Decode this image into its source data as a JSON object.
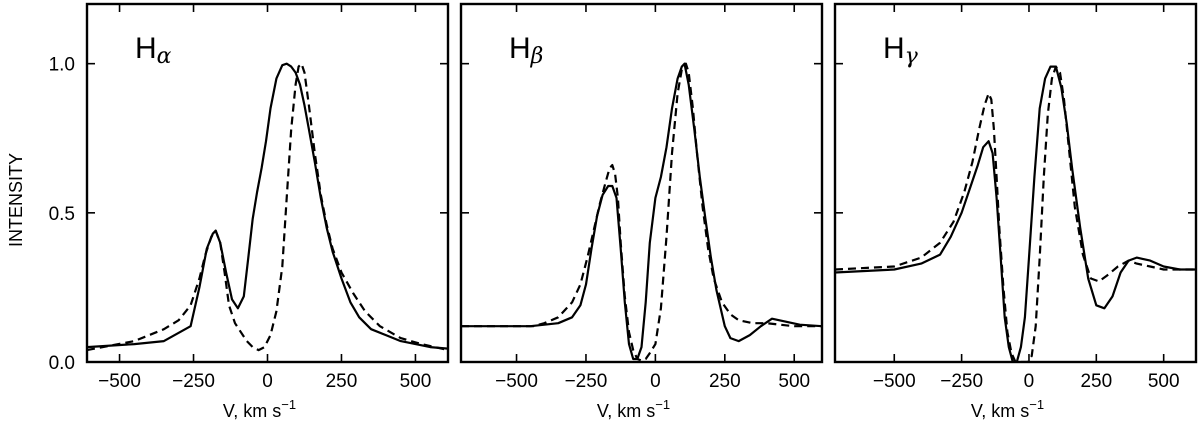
{
  "figure": {
    "ylabel": "INTENSITY",
    "xlabel_prefix": "V, km s",
    "xlabel_sup": "−1"
  },
  "chart_data": [
    {
      "type": "line",
      "title_main": "H",
      "title_sub": "α",
      "xlabel": "V, km s−1",
      "ylabel": "INTENSITY",
      "xlim": [
        -610,
        610
      ],
      "ylim": [
        0,
        1.2
      ],
      "xticks": [
        -500,
        -250,
        0,
        250,
        500
      ],
      "yticks": [
        0.0,
        0.5,
        1.0
      ],
      "ytick_labels": [
        "0.0",
        "0.5",
        "1.0"
      ],
      "show_ytick_labels": true,
      "series": [
        {
          "style": "solid",
          "x": [
            -610,
            -450,
            -350,
            -260,
            -230,
            -205,
            -185,
            -175,
            -160,
            -140,
            -120,
            -100,
            -80,
            -65,
            -50,
            -35,
            -20,
            -5,
            10,
            30,
            50,
            65,
            80,
            95,
            110,
            125,
            140,
            160,
            180,
            200,
            220,
            250,
            280,
            310,
            350,
            400,
            450,
            500,
            550,
            610
          ],
          "y": [
            0.05,
            0.06,
            0.07,
            0.12,
            0.25,
            0.38,
            0.43,
            0.44,
            0.4,
            0.3,
            0.21,
            0.18,
            0.22,
            0.35,
            0.48,
            0.57,
            0.65,
            0.74,
            0.85,
            0.95,
            0.995,
            1.0,
            0.99,
            0.97,
            0.93,
            0.86,
            0.78,
            0.67,
            0.55,
            0.45,
            0.37,
            0.28,
            0.2,
            0.15,
            0.11,
            0.09,
            0.07,
            0.06,
            0.05,
            0.045
          ]
        },
        {
          "style": "dashed",
          "x": [
            -610,
            -450,
            -350,
            -300,
            -260,
            -230,
            -210,
            -190,
            -175,
            -160,
            -145,
            -130,
            -110,
            -90,
            -70,
            -50,
            -30,
            -10,
            10,
            30,
            50,
            65,
            80,
            95,
            105,
            115,
            125,
            140,
            160,
            180,
            200,
            220,
            250,
            290,
            330,
            380,
            450,
            520,
            610
          ],
          "y": [
            0.04,
            0.07,
            0.11,
            0.14,
            0.19,
            0.28,
            0.36,
            0.42,
            0.44,
            0.4,
            0.3,
            0.19,
            0.13,
            0.1,
            0.07,
            0.05,
            0.04,
            0.05,
            0.09,
            0.17,
            0.32,
            0.55,
            0.78,
            0.93,
            0.99,
            1.0,
            0.97,
            0.86,
            0.7,
            0.56,
            0.46,
            0.38,
            0.3,
            0.23,
            0.17,
            0.12,
            0.08,
            0.06,
            0.04
          ]
        }
      ]
    },
    {
      "type": "line",
      "title_main": "H",
      "title_sub": "β",
      "xlabel": "V, km s−1",
      "ylabel": "",
      "xlim": [
        -700,
        600
      ],
      "ylim": [
        0,
        1.2
      ],
      "xticks": [
        -500,
        -250,
        0,
        250,
        500
      ],
      "yticks": [
        0.0,
        0.5,
        1.0
      ],
      "ytick_labels": [],
      "show_ytick_labels": false,
      "series": [
        {
          "style": "solid",
          "x": [
            -700,
            -450,
            -350,
            -300,
            -270,
            -250,
            -230,
            -210,
            -190,
            -170,
            -155,
            -140,
            -125,
            -110,
            -95,
            -80,
            -65,
            -50,
            -35,
            -20,
            0,
            20,
            40,
            60,
            80,
            95,
            105,
            120,
            140,
            160,
            180,
            200,
            220,
            250,
            270,
            300,
            340,
            380,
            420,
            470,
            520,
            600
          ],
          "y": [
            0.12,
            0.12,
            0.13,
            0.15,
            0.19,
            0.26,
            0.38,
            0.49,
            0.56,
            0.59,
            0.59,
            0.55,
            0.38,
            0.2,
            0.06,
            0.01,
            0.01,
            0.05,
            0.2,
            0.4,
            0.55,
            0.62,
            0.72,
            0.85,
            0.95,
            0.99,
            1.0,
            0.93,
            0.78,
            0.62,
            0.48,
            0.35,
            0.24,
            0.12,
            0.08,
            0.07,
            0.09,
            0.12,
            0.145,
            0.135,
            0.125,
            0.12
          ]
        },
        {
          "style": "dashed",
          "x": [
            -700,
            -500,
            -440,
            -400,
            -350,
            -300,
            -270,
            -245,
            -220,
            -200,
            -180,
            -165,
            -155,
            -145,
            -135,
            -125,
            -110,
            -95,
            -80,
            -65,
            -50,
            -35,
            -20,
            0,
            20,
            40,
            60,
            80,
            95,
            110,
            120,
            135,
            150,
            170,
            190,
            210,
            240,
            270,
            300,
            350,
            400,
            450,
            500,
            600
          ],
          "y": [
            0.12,
            0.12,
            0.12,
            0.13,
            0.15,
            0.2,
            0.26,
            0.35,
            0.45,
            0.53,
            0.6,
            0.65,
            0.66,
            0.63,
            0.55,
            0.4,
            0.22,
            0.1,
            0.04,
            0.01,
            0.005,
            0.01,
            0.03,
            0.06,
            0.18,
            0.42,
            0.7,
            0.9,
            0.98,
            1.0,
            0.97,
            0.85,
            0.7,
            0.52,
            0.38,
            0.28,
            0.2,
            0.16,
            0.14,
            0.13,
            0.13,
            0.125,
            0.12,
            0.12
          ]
        }
      ]
    },
    {
      "type": "line",
      "title_main": "H",
      "title_sub": "γ",
      "xlabel": "V, km s−1",
      "ylabel": "",
      "xlim": [
        -720,
        620
      ],
      "ylim": [
        0,
        1.2
      ],
      "xticks": [
        -500,
        -250,
        0,
        250,
        500
      ],
      "yticks": [
        0.0,
        0.5,
        1.0
      ],
      "ytick_labels": [],
      "show_ytick_labels": false,
      "series": [
        {
          "style": "solid",
          "x": [
            -720,
            -500,
            -400,
            -330,
            -290,
            -250,
            -220,
            -190,
            -170,
            -150,
            -135,
            -120,
            -105,
            -90,
            -75,
            -60,
            -45,
            -30,
            -15,
            0,
            20,
            40,
            60,
            80,
            100,
            120,
            140,
            160,
            190,
            220,
            250,
            280,
            310,
            340,
            370,
            400,
            450,
            500,
            560,
            620
          ],
          "y": [
            0.3,
            0.31,
            0.33,
            0.36,
            0.42,
            0.5,
            0.58,
            0.66,
            0.72,
            0.74,
            0.7,
            0.55,
            0.35,
            0.15,
            0.05,
            0.0,
            0.0,
            0.05,
            0.15,
            0.35,
            0.62,
            0.85,
            0.95,
            0.99,
            0.99,
            0.92,
            0.8,
            0.65,
            0.45,
            0.28,
            0.19,
            0.18,
            0.22,
            0.3,
            0.34,
            0.35,
            0.34,
            0.32,
            0.31,
            0.31
          ]
        },
        {
          "style": "dashed",
          "x": [
            -720,
            -500,
            -400,
            -330,
            -280,
            -240,
            -210,
            -185,
            -165,
            -150,
            -140,
            -130,
            -120,
            -110,
            -95,
            -80,
            -65,
            -50,
            -35,
            -20,
            -5,
            10,
            25,
            40,
            55,
            70,
            85,
            100,
            115,
            130,
            150,
            170,
            200,
            230,
            260,
            290,
            330,
            370,
            400,
            450,
            500,
            560,
            620
          ],
          "y": [
            0.31,
            0.32,
            0.35,
            0.4,
            0.47,
            0.57,
            0.67,
            0.78,
            0.86,
            0.9,
            0.88,
            0.78,
            0.62,
            0.45,
            0.25,
            0.1,
            0.03,
            0.0,
            0.0,
            0.0,
            0.0,
            0.02,
            0.12,
            0.35,
            0.62,
            0.83,
            0.95,
            0.99,
            0.97,
            0.88,
            0.7,
            0.52,
            0.36,
            0.28,
            0.27,
            0.29,
            0.32,
            0.34,
            0.33,
            0.32,
            0.31,
            0.31,
            0.31
          ]
        }
      ]
    }
  ]
}
